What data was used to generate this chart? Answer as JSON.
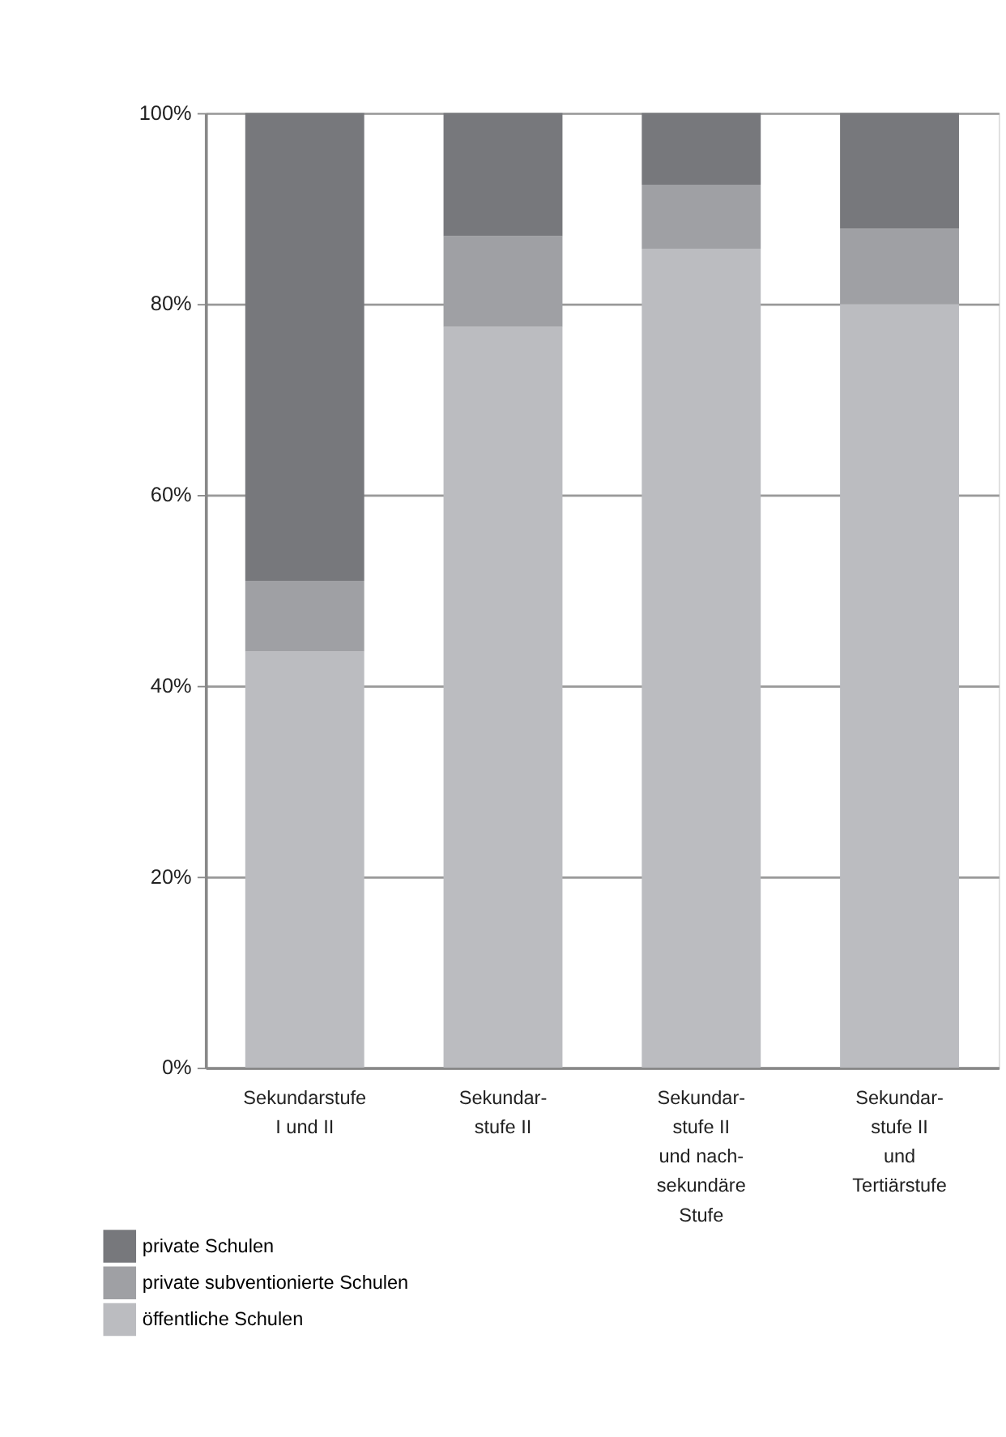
{
  "chart_data": {
    "type": "bar",
    "stacked": true,
    "categories": [
      "Sekundarstufe\nI und II",
      "Sekundar-\nstufe II",
      "Sekundar-\nstufe II\nund nach-\nsekundäre\nStufe",
      "Sekundar-\nstufe II\nund\nTertiärstufe"
    ],
    "series": [
      {
        "name": "öffentliche Schulen",
        "color": "#bbbcc0",
        "values": [
          43.6,
          77.6,
          85.8,
          80
        ]
      },
      {
        "name": "private subventionierte Schulen",
        "color": "#9fa0a4",
        "values": [
          7.4,
          9.5,
          6.7,
          7.9
        ]
      },
      {
        "name": "private Schulen",
        "color": "#77787c",
        "values": [
          49,
          12.9,
          7.5,
          12.1
        ]
      }
    ],
    "ylim": [
      0,
      100
    ],
    "yticks": [
      {
        "value": 0,
        "label": "0%"
      },
      {
        "value": 20,
        "label": "20%"
      },
      {
        "value": 40,
        "label": "40%"
      },
      {
        "value": 60,
        "label": "60%"
      },
      {
        "value": 80,
        "label": "80%"
      },
      {
        "value": 100,
        "label": "100%"
      }
    ],
    "grid": "y",
    "legend": "bottom left"
  }
}
